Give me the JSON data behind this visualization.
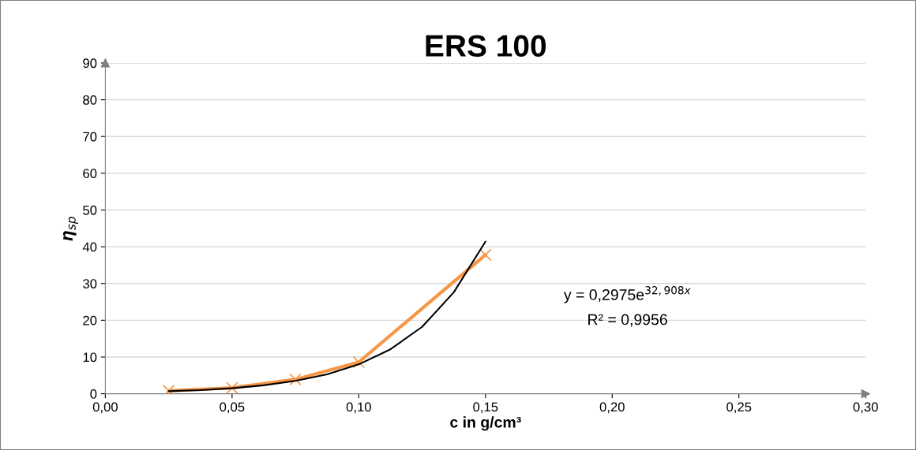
{
  "chart_data": {
    "type": "line",
    "title": "ERS 100",
    "xlabel": "c in g/cm³",
    "ylabel": "η$_{sp}$",
    "series": [
      {
        "color": "#f79646",
        "marker": "cross",
        "x": [
          0.025,
          0.05,
          0.075,
          0.1,
          0.15
        ],
        "values": [
          0.8,
          1.6,
          3.9,
          8.6,
          37.8
        ]
      },
      {
        "color": "#000000",
        "marker": "none",
        "x": [
          0.025,
          0.0375,
          0.05,
          0.0625,
          0.075,
          0.0875,
          0.1,
          0.1125,
          0.125,
          0.1375,
          0.15
        ],
        "values": [
          0.7,
          1.0,
          1.5,
          2.3,
          3.5,
          5.3,
          8.0,
          12.1,
          18.2,
          27.6,
          41.4
        ]
      }
    ],
    "annotations": [
      "y = 0,2975e$^{32,908x}$",
      "R² = 0,9956"
    ],
    "xlim": [
      0,
      0.3
    ],
    "xticks": [
      {
        "value": 0,
        "label": "0,00"
      },
      {
        "value": 0.05,
        "label": "0,05"
      },
      {
        "value": 0.1,
        "label": "0,10"
      },
      {
        "value": 0.15,
        "label": "0,15"
      },
      {
        "value": 0.2,
        "label": "0,20"
      },
      {
        "value": 0.25,
        "label": "0,25"
      },
      {
        "value": 0.3,
        "label": "0,30"
      }
    ],
    "ylim": [
      0,
      90
    ],
    "yticks": [
      0,
      10,
      20,
      30,
      40,
      50,
      60,
      70,
      80,
      90
    ],
    "grid": "y",
    "legend": false
  }
}
